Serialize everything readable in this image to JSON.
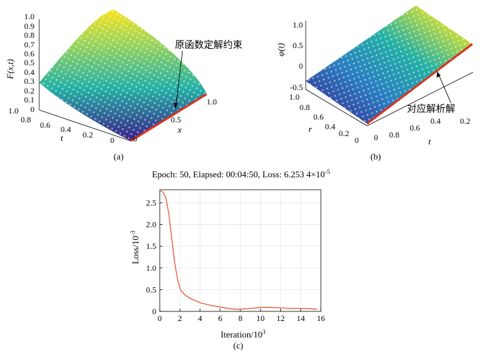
{
  "figures": [
    {
      "panel_label": "(a)",
      "zlabel": "F(x,t)",
      "xlabel": "x",
      "ylabel": "t",
      "annotation": "原函数定解约束",
      "z_ticks": [
        "0",
        "0.1",
        "0.2",
        "0.3",
        "0.4",
        "0.5",
        "0.6",
        "0.7",
        "0.8",
        "0.9",
        "1.0"
      ],
      "t_ticks": [
        "1.0",
        "0.8",
        "0.6",
        "0.4",
        "0.2",
        "0"
      ],
      "x_ticks": [
        "0",
        "0.5",
        "1.0"
      ],
      "colors": {
        "low": "#3b1f8a",
        "mid": "#23b1a6",
        "high": "#fbe21d",
        "constraint": "#d8331f"
      }
    },
    {
      "panel_label": "(b)",
      "zlabel": "φ(t)",
      "xlabel": "t",
      "ylabel": "r",
      "annotation": "对应解析解",
      "z_ticks": [
        "-0.5",
        "0",
        "0.5",
        "1.0"
      ],
      "r_ticks": [
        "1.0",
        "0.8",
        "0.6",
        "0.4",
        "0.2",
        "0"
      ],
      "t_ticks": [
        "0",
        "0.8",
        "0.6",
        "0.4",
        "0.2"
      ],
      "colors": {
        "low": "#3b1f8a",
        "mid": "#23b1a6",
        "high": "#fbe21d",
        "constraint": "#d8331f"
      }
    }
  ],
  "chart_data": [
    {
      "type": "line",
      "panel_label": "(c)",
      "title": "Epoch: 50, Elapsed: 00:04:50, Loss: 6.253 4×10-5",
      "title_parts": {
        "main": "Epoch: 50, Elapsed: 00:04:50, Loss: 6.253 4×10",
        "sup": "-5"
      },
      "xlabel": "Iteration/10",
      "xlabel_sup": "3",
      "ylabel": "Loss/10",
      "ylabel_sup": "-3",
      "xlim": [
        0,
        16
      ],
      "ylim": [
        0,
        2.8
      ],
      "x_ticks": [
        0,
        2,
        4,
        6,
        8,
        10,
        12,
        14,
        16
      ],
      "y_ticks": [
        0,
        0.5,
        1,
        1.5,
        2,
        2.5
      ],
      "y_tick_labels": [
        "0",
        "0.5",
        "1.0",
        "1.5",
        "2.0",
        "2.5"
      ],
      "grid": true,
      "line_color": "#e0593a",
      "series": [
        {
          "x": [
            0,
            0.3,
            0.6,
            0.9,
            1.2,
            1.5,
            1.8,
            2.1,
            2.5,
            3.0,
            3.5,
            4.0,
            5.0,
            6.0,
            7.0,
            7.5,
            8.0,
            9.0,
            10.0,
            11.0,
            12.0,
            13.0,
            14.0,
            15.0,
            15.6
          ],
          "y": [
            2.78,
            2.75,
            2.62,
            2.25,
            1.65,
            1.1,
            0.7,
            0.48,
            0.38,
            0.3,
            0.25,
            0.2,
            0.14,
            0.1,
            0.06,
            0.05,
            0.05,
            0.07,
            0.09,
            0.09,
            0.08,
            0.07,
            0.07,
            0.06,
            0.05
          ]
        }
      ]
    }
  ]
}
